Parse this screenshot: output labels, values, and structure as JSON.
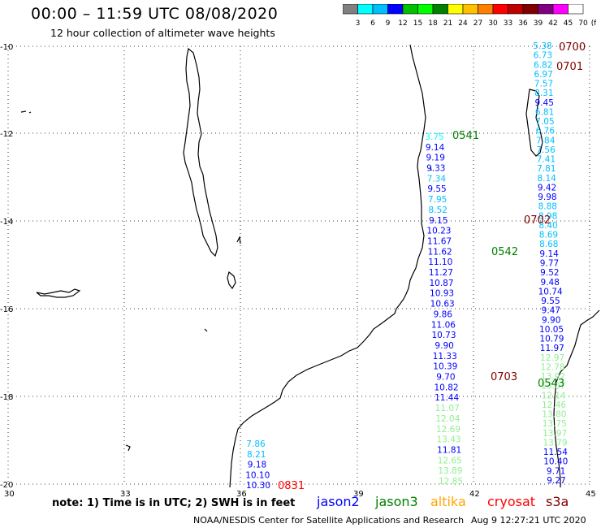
{
  "header": {
    "title": "00:00 – 11:59 UTC 08/08/2020",
    "subtitle": "12 hour collection of altimeter wave heights"
  },
  "color_scale": {
    "labels": [
      "3",
      "6",
      "9",
      "12",
      "15",
      "18",
      "21",
      "24",
      "27",
      "30",
      "33",
      "36",
      "39",
      "42",
      "45",
      "70",
      "(ft)"
    ],
    "colors": [
      "#808080",
      "#00ffff",
      "#00bfff",
      "#0000ff",
      "#00c000",
      "#00ff00",
      "#008000",
      "#ffff00",
      "#ffc000",
      "#ff8000",
      "#ff0000",
      "#c00000",
      "#800000",
      "#800080",
      "#ff00ff",
      "#ffffff"
    ]
  },
  "axes": {
    "lat_labels": [
      "-10",
      "-12",
      "-14",
      "-16",
      "-18",
      "-20"
    ],
    "lon_labels": [
      "30",
      "33",
      "36",
      "39",
      "42",
      "45"
    ]
  },
  "passes": [
    {
      "id": "0700",
      "color": "#800000"
    },
    {
      "id": "0701",
      "color": "#800000"
    },
    {
      "id": "0541",
      "color": "#008000"
    },
    {
      "id": "0702",
      "color": "#800000"
    },
    {
      "id": "0542",
      "color": "#008000"
    },
    {
      "id": "0703",
      "color": "#800000"
    },
    {
      "id": "0543",
      "color": "#008000"
    },
    {
      "id": "0831",
      "color": "#ff0000"
    }
  ],
  "track_a": [
    {
      "v": "5.38",
      "c": "#00bfff"
    },
    {
      "v": "6.73",
      "c": "#00bfff"
    },
    {
      "v": "6.82",
      "c": "#00bfff"
    },
    {
      "v": "6.97",
      "c": "#00bfff"
    },
    {
      "v": "7.57",
      "c": "#00bfff"
    },
    {
      "v": "8.31",
      "c": "#00bfff"
    },
    {
      "v": "9.45",
      "c": "#0000ff"
    },
    {
      "v": "6.81",
      "c": "#00bfff"
    },
    {
      "v": "7.05",
      "c": "#00bfff"
    },
    {
      "v": "6.76",
      "c": "#00bfff"
    },
    {
      "v": "7.84",
      "c": "#00bfff"
    },
    {
      "v": "7.56",
      "c": "#00bfff"
    },
    {
      "v": "7.41",
      "c": "#00bfff"
    },
    {
      "v": "7.81",
      "c": "#00bfff"
    },
    {
      "v": "8.14",
      "c": "#00bfff"
    },
    {
      "v": "9.42",
      "c": "#0000ff"
    },
    {
      "v": "9.98",
      "c": "#0000ff"
    },
    {
      "v": "8.88",
      "c": "#00bfff"
    },
    {
      "v": "8.98",
      "c": "#00bfff"
    },
    {
      "v": "8.40",
      "c": "#00bfff"
    },
    {
      "v": "8.69",
      "c": "#00bfff"
    },
    {
      "v": "8.68",
      "c": "#00bfff"
    },
    {
      "v": "9.14",
      "c": "#0000ff"
    },
    {
      "v": "9.77",
      "c": "#0000ff"
    },
    {
      "v": "9.52",
      "c": "#0000ff"
    },
    {
      "v": "9.48",
      "c": "#0000ff"
    },
    {
      "v": "10.74",
      "c": "#0000ff"
    },
    {
      "v": "9.55",
      "c": "#0000ff"
    },
    {
      "v": "9.47",
      "c": "#0000ff"
    },
    {
      "v": "9.90",
      "c": "#0000ff"
    },
    {
      "v": "10.05",
      "c": "#0000ff"
    },
    {
      "v": "10.79",
      "c": "#0000ff"
    },
    {
      "v": "11.97",
      "c": "#0000ff"
    },
    {
      "v": "12.97",
      "c": "#90ee90"
    },
    {
      "v": "12.78",
      "c": "#90ee90"
    },
    {
      "v": "13.92",
      "c": "#90ee90"
    },
    {
      "v": "13.07",
      "c": "#90ee90"
    },
    {
      "v": "12.14",
      "c": "#90ee90"
    },
    {
      "v": "12.46",
      "c": "#90ee90"
    },
    {
      "v": "13.80",
      "c": "#90ee90"
    },
    {
      "v": "13.75",
      "c": "#90ee90"
    },
    {
      "v": "13.97",
      "c": "#90ee90"
    },
    {
      "v": "13.79",
      "c": "#90ee90"
    },
    {
      "v": "11.54",
      "c": "#0000ff"
    },
    {
      "v": "10.40",
      "c": "#0000ff"
    },
    {
      "v": "9.71",
      "c": "#0000ff"
    },
    {
      "v": "9.27",
      "c": "#0000ff"
    }
  ],
  "track_b": [
    {
      "v": "3.75",
      "c": "#00ffff"
    },
    {
      "v": "9.14",
      "c": "#0000ff"
    },
    {
      "v": "9.19",
      "c": "#0000ff"
    },
    {
      "v": "9.33",
      "c": "#0000ff"
    },
    {
      "v": "7.34",
      "c": "#00bfff"
    },
    {
      "v": "9.55",
      "c": "#0000ff"
    },
    {
      "v": "7.95",
      "c": "#00bfff"
    },
    {
      "v": "8.52",
      "c": "#00bfff"
    },
    {
      "v": "9.15",
      "c": "#0000ff"
    },
    {
      "v": "10.23",
      "c": "#0000ff"
    },
    {
      "v": "11.67",
      "c": "#0000ff"
    },
    {
      "v": "11.62",
      "c": "#0000ff"
    },
    {
      "v": "11.10",
      "c": "#0000ff"
    },
    {
      "v": "11.27",
      "c": "#0000ff"
    },
    {
      "v": "10.87",
      "c": "#0000ff"
    },
    {
      "v": "10.93",
      "c": "#0000ff"
    },
    {
      "v": "10.63",
      "c": "#0000ff"
    },
    {
      "v": "9.86",
      "c": "#0000ff"
    },
    {
      "v": "11.06",
      "c": "#0000ff"
    },
    {
      "v": "10.73",
      "c": "#0000ff"
    },
    {
      "v": "9.90",
      "c": "#0000ff"
    },
    {
      "v": "11.33",
      "c": "#0000ff"
    },
    {
      "v": "10.39",
      "c": "#0000ff"
    },
    {
      "v": "9.70",
      "c": "#0000ff"
    },
    {
      "v": "10.82",
      "c": "#0000ff"
    },
    {
      "v": "11.44",
      "c": "#0000ff"
    },
    {
      "v": "11.07",
      "c": "#90ee90"
    },
    {
      "v": "12.04",
      "c": "#90ee90"
    },
    {
      "v": "12.69",
      "c": "#90ee90"
    },
    {
      "v": "13.43",
      "c": "#90ee90"
    },
    {
      "v": "11.81",
      "c": "#0000ff"
    },
    {
      "v": "12.65",
      "c": "#90ee90"
    },
    {
      "v": "13.89",
      "c": "#90ee90"
    },
    {
      "v": "12.85",
      "c": "#90ee90"
    }
  ],
  "track_c": [
    {
      "v": "7.86",
      "c": "#00bfff"
    },
    {
      "v": "8.21",
      "c": "#00bfff"
    },
    {
      "v": "9.18",
      "c": "#0000ff"
    },
    {
      "v": "10.10",
      "c": "#0000ff"
    },
    {
      "v": "10.30",
      "c": "#0000ff"
    }
  ],
  "satellites": [
    {
      "name": "jason2",
      "color": "#0000ff"
    },
    {
      "name": "jason3",
      "color": "#008000"
    },
    {
      "name": "altika",
      "color": "#ffa500"
    },
    {
      "name": "cryosat",
      "color": "#ff0000"
    },
    {
      "name": "s3a",
      "color": "#800000"
    }
  ],
  "footer": {
    "note": "note: 1) Time is in UTC; 2) SWH is in feet",
    "credit": "NOAA/NESDIS Center for Satellite Applications and Research",
    "timestamp": "Aug  9 12:27:21 UTC 2020"
  }
}
